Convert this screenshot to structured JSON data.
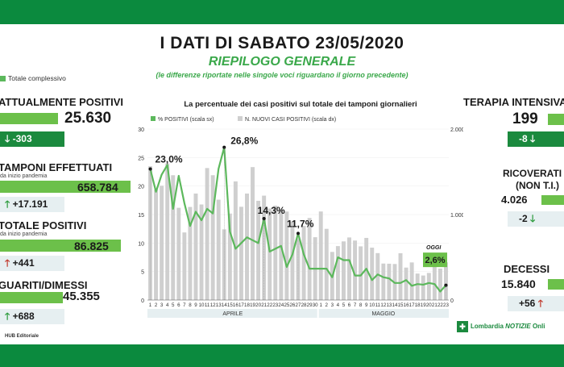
{
  "header": {
    "title": "I DATI DI SABATO 23/05/2020",
    "subtitle": "RIEPILOGO GENERALE",
    "note": "(le differenze riportate nelle singole voci riguardano il giorno precedente)"
  },
  "legend_left": "Totale complessivo",
  "colors": {
    "brand_green": "#0b8a3e",
    "bar_green": "#6cc04a",
    "accent_green": "#3aa84a",
    "gray_bar": "#cfcfcf",
    "line_green": "#5cb85c"
  },
  "left_stats": {
    "positivi": {
      "label": "ATTUALMENTE POSITIVI",
      "value": "25.630",
      "delta": "-303"
    },
    "tamponi": {
      "label": "TAMPONI EFFETTUATI",
      "sub": "da inizio pandemia",
      "value": "658.784",
      "delta": "+17.191"
    },
    "totale": {
      "label": "TOTALE POSITIVI",
      "sub": "da inizio pandemia",
      "value": "86.825",
      "delta": "+441"
    },
    "guariti": {
      "label": "GUARITI/DIMESSI",
      "value": "45.355",
      "delta": "+688"
    }
  },
  "right_stats": {
    "terapia": {
      "label": "TERAPIA INTENSIVA",
      "value": "199",
      "delta": "-8"
    },
    "ricoverati": {
      "label": "RICOVERATI",
      "label2": "(NON T.I.)",
      "value": "4.026",
      "delta": "-2"
    },
    "decessi": {
      "label": "DECESSI",
      "value": "15.840",
      "delta": "+56"
    }
  },
  "footer": {
    "hub": "HUB Editoriale",
    "brand_a": "Lombardia",
    "brand_b": "NOTIZIE",
    "brand_c": "Onli"
  },
  "chart_data": {
    "type": "bar",
    "title": "La percentuale dei casi positivi sul totale dei tamponi giornalieri",
    "legend": [
      "% POSITIVI (scala sx)",
      "N. NUOVI CASI POSITIVI (scala dx)"
    ],
    "x_ticks": [
      "1",
      "2",
      "3",
      "4",
      "5",
      "6",
      "7",
      "8",
      "9",
      "10",
      "11",
      "12",
      "13",
      "14",
      "15",
      "16",
      "17",
      "18",
      "19",
      "20",
      "21",
      "22",
      "23",
      "24",
      "25",
      "26",
      "27",
      "28",
      "29",
      "30",
      "1",
      "2",
      "3",
      "4",
      "5",
      "6",
      "7",
      "8",
      "9",
      "10",
      "11",
      "12",
      "13",
      "14",
      "15",
      "16",
      "17",
      "18",
      "19",
      "20",
      "21",
      "22",
      "23"
    ],
    "months": [
      "APRILE",
      "MAGGIO"
    ],
    "y_left": {
      "ticks": [
        "0",
        "5",
        "10",
        "15",
        "20",
        "25",
        "30"
      ],
      "range": [
        0,
        30
      ]
    },
    "y_right": {
      "ticks": [
        "0",
        "1.000",
        "2.000"
      ],
      "range": [
        0,
        2000
      ]
    },
    "series": [
      {
        "name": "% POSITIVI (scala sx)",
        "type": "line",
        "values": [
          23.0,
          19.0,
          22.0,
          23.7,
          16.0,
          21.8,
          17.0,
          13.0,
          15.5,
          14.0,
          16.0,
          15.2,
          23.0,
          26.8,
          12.0,
          9.0,
          10.0,
          11.0,
          10.5,
          10.0,
          14.3,
          8.5,
          9.0,
          9.5,
          5.8,
          8.0,
          11.7,
          8.0,
          5.5,
          5.5,
          5.5,
          5.5,
          4.0,
          7.5,
          7.0,
          7.0,
          4.3,
          4.3,
          5.5,
          3.5,
          4.5,
          4.0,
          3.8,
          3.0,
          3.0,
          3.5,
          2.5,
          2.8,
          2.7,
          3.0,
          2.8,
          1.5,
          2.6
        ]
      },
      {
        "name": "N. NUOVI CASI POSITIVI (scala dx)",
        "type": "bar",
        "values": [
          1565,
          1292,
          1337,
          1598,
          1460,
          1079,
          791,
          1089,
          1246,
          1118,
          1544,
          1460,
          1174,
          827,
          1012,
          1388,
          1091,
          1246,
          1555,
          1161,
          1221,
          1071,
          1104,
          1051,
          1035,
          920,
          712,
          867,
          960,
          735,
          1036,
          833,
          563,
          631,
          686,
          732,
          696,
          628,
          727,
          613,
          549,
          427,
          425,
          422,
          548,
          380,
          440,
          310,
          287,
          317,
          410,
          368,
          441
        ]
      },
      {
        "name": "labels",
        "type": "labels",
        "values": [
          "23,0%",
          "26,8%",
          "14,3%",
          "11,7%",
          "2,6%"
        ],
        "oggi": "OGGI"
      }
    ]
  }
}
